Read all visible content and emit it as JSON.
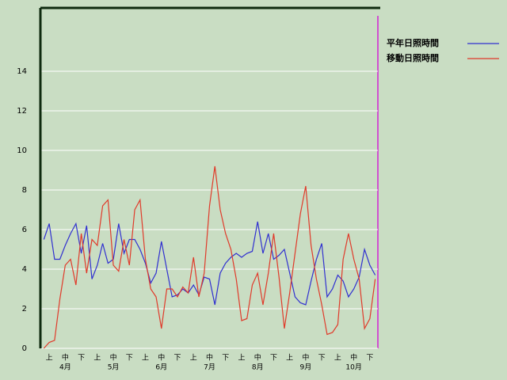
{
  "chart_data": {
    "type": "line",
    "categories": [
      null,
      "上",
      null,
      null,
      "中",
      null,
      null,
      "下",
      null,
      null,
      "上",
      null,
      null,
      "中",
      null,
      null,
      "下",
      null,
      null,
      "上",
      null,
      null,
      "中",
      null,
      null,
      "下",
      null,
      null,
      "上",
      null,
      null,
      "中",
      null,
      null,
      "下",
      null,
      null,
      "上",
      null,
      null,
      "中",
      null,
      null,
      "下",
      null,
      null,
      "上",
      null,
      null,
      "中",
      null,
      null,
      "下",
      null,
      null,
      "上",
      null,
      null,
      "中",
      null,
      null,
      "下",
      null
    ],
    "month_labels": [
      "4月",
      "5月",
      "6月",
      "7月",
      "8月",
      "9月",
      "10月"
    ],
    "series": [
      {
        "name": "平年日照時間",
        "color": "#3030d0",
        "values": [
          5.5,
          6.3,
          4.5,
          4.5,
          5.2,
          5.8,
          6.3,
          4.8,
          6.2,
          3.5,
          4.2,
          5.3,
          4.3,
          4.5,
          6.3,
          4.8,
          5.5,
          5.5,
          5.0,
          4.3,
          3.3,
          3.8,
          5.4,
          4.0,
          2.6,
          2.7,
          3.0,
          2.8,
          3.2,
          2.7,
          3.6,
          3.5,
          2.2,
          3.8,
          4.3,
          4.6,
          4.8,
          4.6,
          4.8,
          4.9,
          6.4,
          4.8,
          5.8,
          4.5,
          4.7,
          5.0,
          3.8,
          2.6,
          2.3,
          2.2,
          3.4,
          4.5,
          5.3,
          2.6,
          3.0,
          3.7,
          3.4,
          2.6,
          3.0,
          3.6,
          5.0,
          4.2,
          3.7
        ]
      },
      {
        "name": "移動日照時間",
        "color": "#e03a2a",
        "values": [
          0,
          0.3,
          0.4,
          2.5,
          4.2,
          4.5,
          3.2,
          5.8,
          3.8,
          5.5,
          5.2,
          7.2,
          7.5,
          4.2,
          3.9,
          5.5,
          4.2,
          7.0,
          7.5,
          4.5,
          3.0,
          2.6,
          1.0,
          3.0,
          3.0,
          2.6,
          3.1,
          2.8,
          4.6,
          2.6,
          3.8,
          7.2,
          9.2,
          7.0,
          5.8,
          5.0,
          3.5,
          1.4,
          1.5,
          3.2,
          3.8,
          2.2,
          3.8,
          5.8,
          3.6,
          1.0,
          2.8,
          4.8,
          6.8,
          8.2,
          5.2,
          3.5,
          2.2,
          0.7,
          0.8,
          1.2,
          4.5,
          5.8,
          4.5,
          3.5,
          1.0,
          1.5,
          3.5
        ]
      }
    ],
    "ylim": [
      0,
      17.2
    ],
    "yticks": [
      0,
      2,
      4,
      6,
      8,
      10,
      12,
      14
    ],
    "grid": true
  }
}
